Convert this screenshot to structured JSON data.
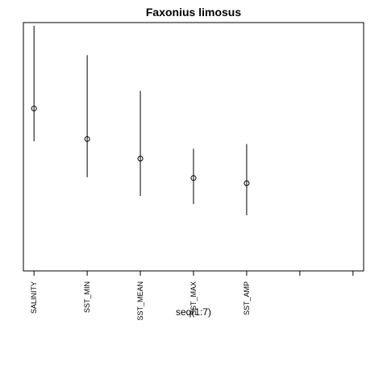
{
  "chart_data": {
    "type": "scatter",
    "title": "Faxonius limosus",
    "xlabel": "seq(1:7)",
    "ylabel": "",
    "x": [
      1,
      2,
      3,
      4,
      5,
      6,
      7
    ],
    "tick_labels": [
      "SALINITY",
      "SST_MIN",
      "SST_MEAN",
      "SST_MAX",
      "SST_AMP",
      "",
      ""
    ],
    "series": [
      {
        "points": [
          {
            "x": 1,
            "y": 0.654,
            "low": 0.522,
            "high": 0.987
          },
          {
            "x": 2,
            "y": 0.531,
            "low": 0.377,
            "high": 0.869
          },
          {
            "x": 3,
            "y": 0.452,
            "low": 0.302,
            "high": 0.725
          },
          {
            "x": 4,
            "y": 0.374,
            "low": 0.269,
            "high": 0.492
          },
          {
            "x": 5,
            "y": 0.353,
            "low": 0.224,
            "high": 0.511
          }
        ]
      }
    ],
    "xlim": [
      0.8,
      7.2
    ],
    "ylim": [
      0,
      1
    ],
    "y_axis_shown": false,
    "grid": false,
    "legend": "none",
    "point_style": "open-circle",
    "interval_style": "vertical-line"
  }
}
